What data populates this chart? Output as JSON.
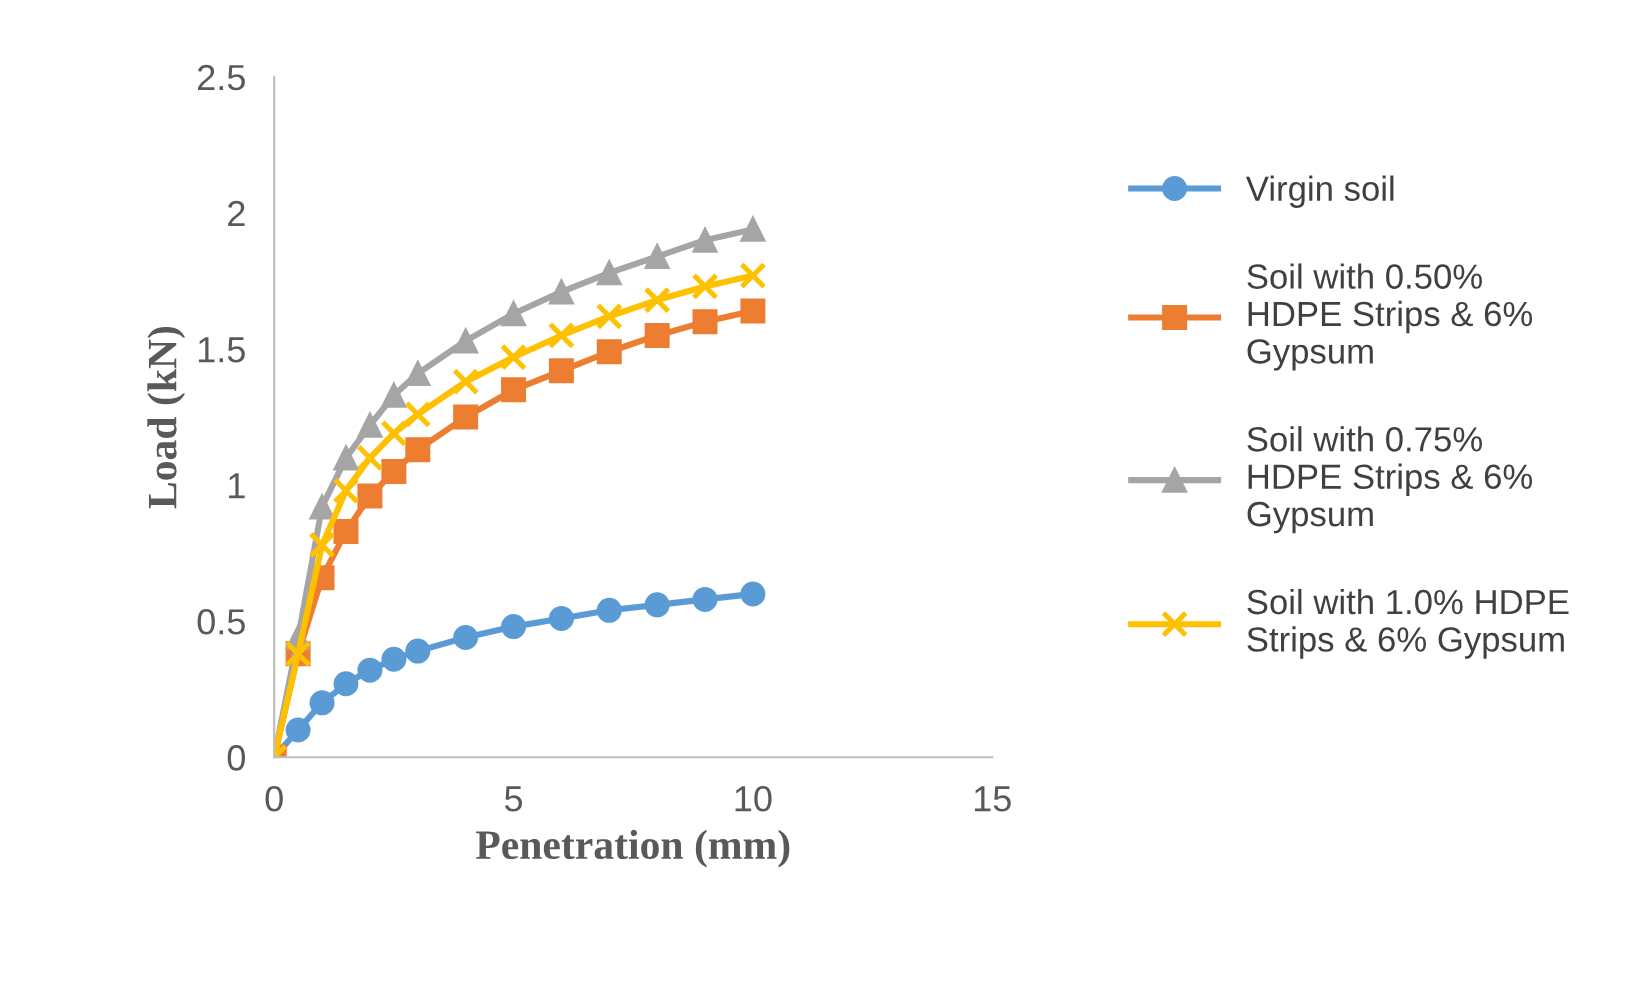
{
  "chart_data": {
    "type": "line",
    "xlabel": "Penetration (mm)",
    "ylabel": "Load (kN)",
    "x": [
      0,
      0.5,
      1,
      1.5,
      2,
      2.5,
      3,
      4,
      5,
      6,
      7,
      8,
      9,
      10
    ],
    "xlim": [
      0,
      15
    ],
    "xticks": [
      0,
      5,
      10,
      15
    ],
    "ylim": [
      0,
      2.5
    ],
    "yticks": [
      0,
      0.5,
      1,
      1.5,
      2,
      2.5
    ],
    "grid": false,
    "legend": "right",
    "line_style": "solid",
    "series": [
      {
        "name": "Virgin soil",
        "color": "#5b9bd5",
        "marker": "circle",
        "values": [
          0,
          0.1,
          0.2,
          0.27,
          0.32,
          0.36,
          0.39,
          0.44,
          0.48,
          0.51,
          0.54,
          0.56,
          0.58,
          0.6
        ]
      },
      {
        "name": "Soil with 0.50% HDPE Strips & 6% Gypsum",
        "color": "#ed7d31",
        "marker": "square",
        "values": [
          0,
          0.38,
          0.66,
          0.83,
          0.96,
          1.05,
          1.13,
          1.25,
          1.35,
          1.42,
          1.49,
          1.55,
          1.6,
          1.64
        ]
      },
      {
        "name": "Soil with 0.75% HDPE Strips & 6% Gypsum",
        "color": "#a5a5a5",
        "marker": "triangle",
        "values": [
          0,
          0.44,
          0.92,
          1.1,
          1.22,
          1.33,
          1.41,
          1.53,
          1.63,
          1.71,
          1.78,
          1.84,
          1.9,
          1.94
        ]
      },
      {
        "name": "Soil with 1.0% HDPE Strips & 6% Gypsum",
        "color": "#ffc000",
        "marker": "cross",
        "values": [
          0,
          0.38,
          0.78,
          0.98,
          1.1,
          1.19,
          1.26,
          1.38,
          1.47,
          1.55,
          1.62,
          1.68,
          1.73,
          1.77
        ]
      }
    ]
  }
}
